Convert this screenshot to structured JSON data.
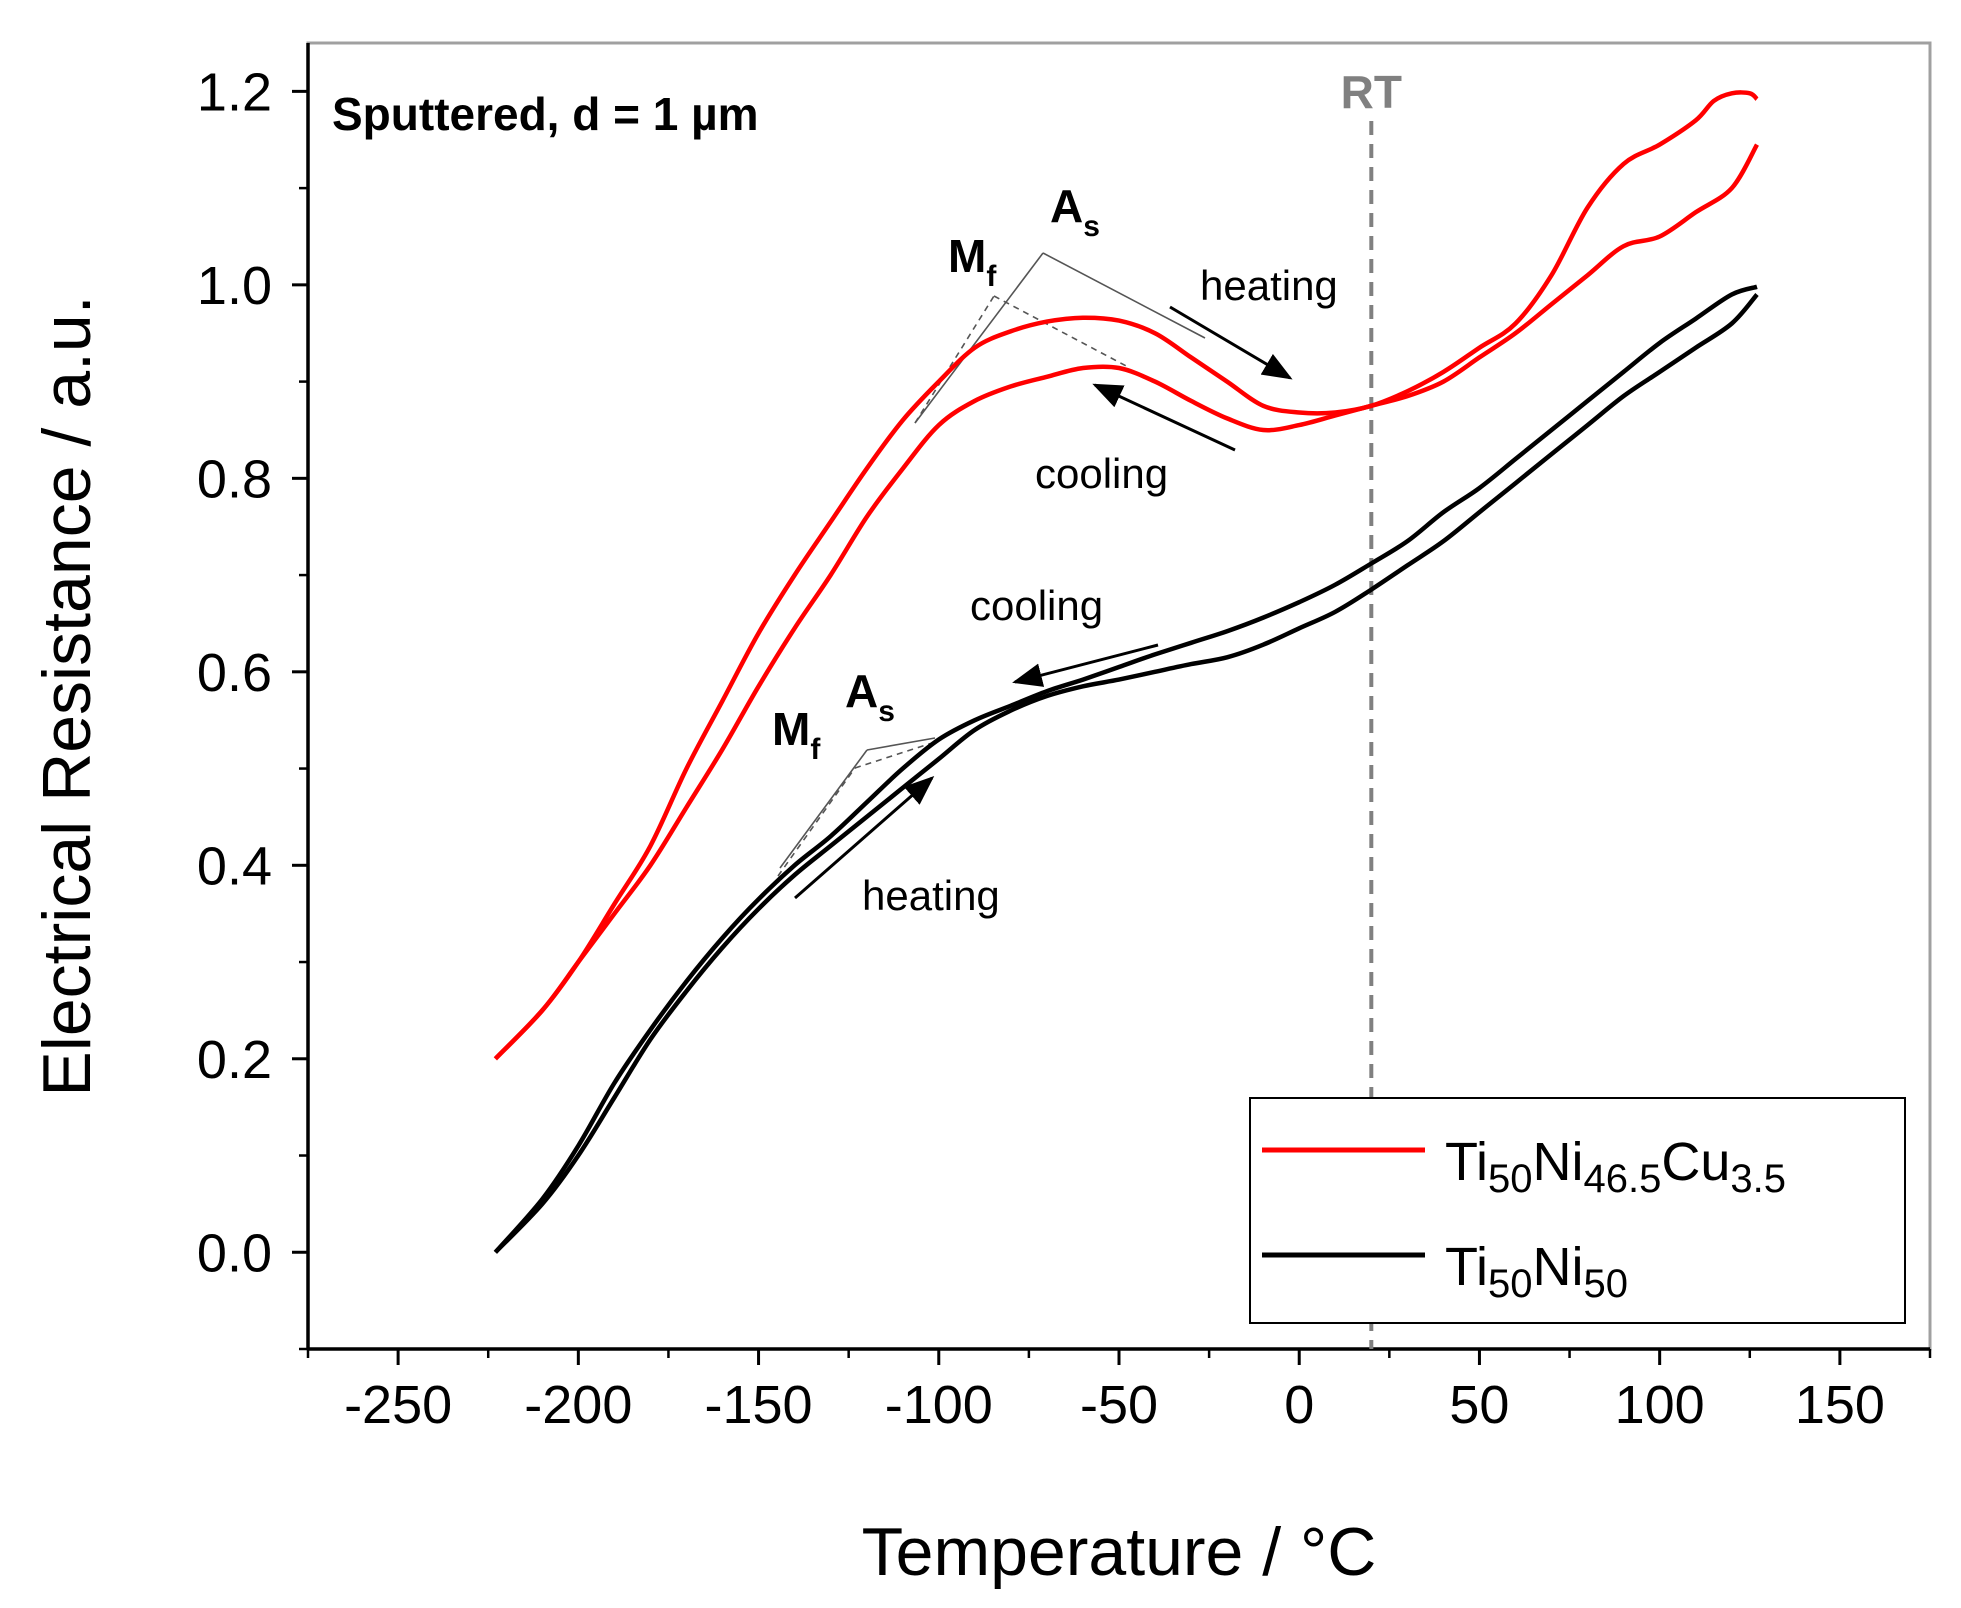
{
  "chart_data": {
    "type": "line",
    "title": "Sputtered, d = 1 µm",
    "xlabel": "Temperature / °C",
    "ylabel": "Electrical Resistance / a.u.",
    "xlim": [
      -275,
      175
    ],
    "ylim": [
      -0.1,
      1.25
    ],
    "xticks": [
      -250,
      -200,
      -150,
      -100,
      -50,
      0,
      50,
      100,
      150
    ],
    "yticks": [
      0.0,
      0.2,
      0.4,
      0.6,
      0.8,
      1.0,
      1.2
    ],
    "xtick_labels": [
      "-250",
      "-200",
      "-150",
      "-100",
      "-50",
      "0",
      "50",
      "100",
      "150"
    ],
    "ytick_labels": [
      "0.0",
      "0.2",
      "0.4",
      "0.6",
      "0.8",
      "1.0",
      "1.2"
    ],
    "grid": false,
    "legend_position": "bottom-right",
    "reference_line": {
      "x": 20,
      "label": "RT",
      "color": "#808080"
    },
    "series": [
      {
        "name": "Ti50Ni46.5Cu3.5",
        "legend": {
          "base1": "Ti",
          "sub1": "50",
          "base2": "Ni",
          "sub2": "46.5",
          "base3": "Cu",
          "sub3": "3.5"
        },
        "color": "#ff0000",
        "heating": {
          "x": [
            -223,
            -210,
            -200,
            -190,
            -180,
            -170,
            -160,
            -150,
            -140,
            -130,
            -120,
            -110,
            -100,
            -90,
            -80,
            -70,
            -60,
            -50,
            -40,
            -30,
            -20,
            -10,
            0,
            10,
            20,
            30,
            40,
            50,
            60,
            70,
            80,
            90,
            100,
            110,
            115,
            120,
            125,
            127
          ],
          "y": [
            0.2,
            0.25,
            0.3,
            0.36,
            0.42,
            0.5,
            0.57,
            0.64,
            0.7,
            0.755,
            0.81,
            0.86,
            0.9,
            0.935,
            0.952,
            0.962,
            0.966,
            0.963,
            0.95,
            0.925,
            0.9,
            0.875,
            0.868,
            0.868,
            0.875,
            0.89,
            0.91,
            0.935,
            0.96,
            1.01,
            1.08,
            1.125,
            1.145,
            1.17,
            1.19,
            1.198,
            1.198,
            1.192
          ]
        },
        "cooling": {
          "x": [
            127,
            120,
            110,
            100,
            90,
            80,
            70,
            60,
            50,
            40,
            30,
            20,
            10,
            0,
            -10,
            -20,
            -30,
            -40,
            -50,
            -60,
            -70,
            -80,
            -90,
            -100,
            -110,
            -120,
            -130,
            -140,
            -150,
            -160,
            -170,
            -180,
            -190,
            -200,
            -210,
            -223
          ],
          "y": [
            1.145,
            1.1,
            1.075,
            1.05,
            1.04,
            1.01,
            0.98,
            0.95,
            0.925,
            0.9,
            0.885,
            0.875,
            0.865,
            0.855,
            0.85,
            0.862,
            0.88,
            0.9,
            0.914,
            0.914,
            0.905,
            0.895,
            0.88,
            0.855,
            0.81,
            0.76,
            0.7,
            0.645,
            0.585,
            0.52,
            0.46,
            0.4,
            0.35,
            0.3,
            0.25,
            0.2
          ]
        },
        "annotations": {
          "heating_label": "heating",
          "cooling_label": "cooling",
          "Mf": "M",
          "Mf_sub": "f",
          "As": "A",
          "As_sub": "s"
        }
      },
      {
        "name": "Ti50Ni50",
        "legend": {
          "base1": "Ti",
          "sub1": "50",
          "base2": "Ni",
          "sub2": "50"
        },
        "color": "#000000",
        "heating": {
          "x": [
            -223,
            -210,
            -200,
            -190,
            -180,
            -170,
            -160,
            -150,
            -140,
            -130,
            -120,
            -110,
            -100,
            -90,
            -80,
            -70,
            -60,
            -50,
            -40,
            -30,
            -20,
            -10,
            0,
            10,
            20,
            30,
            40,
            50,
            60,
            70,
            80,
            90,
            100,
            110,
            120,
            127
          ],
          "y": [
            0.0,
            0.05,
            0.1,
            0.16,
            0.22,
            0.27,
            0.315,
            0.355,
            0.39,
            0.42,
            0.45,
            0.48,
            0.51,
            0.54,
            0.56,
            0.575,
            0.585,
            0.592,
            0.6,
            0.608,
            0.615,
            0.628,
            0.645,
            0.662,
            0.685,
            0.71,
            0.735,
            0.765,
            0.795,
            0.825,
            0.855,
            0.885,
            0.91,
            0.935,
            0.96,
            0.99
          ]
        },
        "cooling": {
          "x": [
            127,
            120,
            110,
            100,
            90,
            80,
            70,
            60,
            50,
            40,
            30,
            20,
            10,
            0,
            -10,
            -20,
            -30,
            -40,
            -50,
            -60,
            -70,
            -80,
            -90,
            -100,
            -110,
            -120,
            -130,
            -140,
            -150,
            -160,
            -170,
            -180,
            -190,
            -200,
            -210,
            -223
          ],
          "y": [
            0.998,
            0.99,
            0.965,
            0.94,
            0.91,
            0.88,
            0.85,
            0.82,
            0.79,
            0.765,
            0.735,
            0.712,
            0.69,
            0.672,
            0.656,
            0.642,
            0.63,
            0.618,
            0.605,
            0.592,
            0.58,
            0.565,
            0.55,
            0.53,
            0.5,
            0.465,
            0.43,
            0.4,
            0.365,
            0.325,
            0.28,
            0.23,
            0.175,
            0.11,
            0.055,
            0.0
          ]
        },
        "annotations": {
          "heating_label": "heating",
          "cooling_label": "cooling",
          "Mf": "M",
          "Mf_sub": "f",
          "As": "A",
          "As_sub": "s"
        }
      }
    ]
  }
}
